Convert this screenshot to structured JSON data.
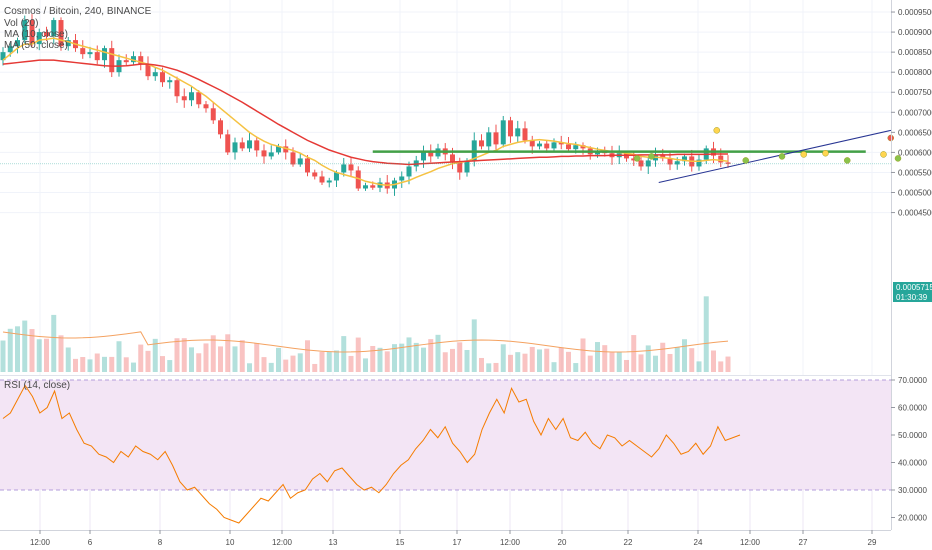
{
  "legend": {
    "title": "Cosmos / Bitcoin, 240, BINANCE",
    "vol": "Vol (20)",
    "ma10": "MA (10, close)",
    "ma50": "MA (50, close)",
    "rsi": "RSI (14, close)"
  },
  "price_badge": {
    "price": "0.0005715",
    "countdown": "01:30:39"
  },
  "colors": {
    "up": "#26a69a",
    "down": "#ef5350",
    "ma10": "#f5c242",
    "ma50": "#e53935",
    "rsi": "#f57c00",
    "support": "#43a047",
    "trend": "#283593",
    "rsi_band": "#f3e5f5"
  },
  "chart_data": [
    {
      "type": "candlestick",
      "title": "Cosmos / Bitcoin, 240, BINANCE",
      "x_ticks": [
        "12:00",
        "6",
        "8",
        "10",
        "12:00",
        "13",
        "15",
        "17",
        "12:00",
        "20",
        "22",
        "24",
        "12:00",
        "27",
        "29"
      ],
      "ylim": [
        4.5e-05,
        0.00098
      ],
      "y_ticks": [
        "0.0004500",
        "0.0005000",
        "0.0005500",
        "0.0006000",
        "0.0006500",
        "0.0007000",
        "0.0007500",
        "0.0008000",
        "0.0008500",
        "0.0009000",
        "0.0009500"
      ],
      "closes": [
        0.00085,
        0.000865,
        0.00088,
        0.00093,
        0.00087,
        0.0009,
        0.00089,
        0.00093,
        0.000865,
        0.00088,
        0.00086,
        0.000845,
        0.00085,
        0.00083,
        0.00086,
        0.0008,
        0.00083,
        0.000825,
        0.00084,
        0.00082,
        0.00079,
        0.0008,
        0.000775,
        0.00078,
        0.00074,
        0.00073,
        0.00075,
        0.00072,
        0.00071,
        0.00068,
        0.000645,
        0.0006,
        0.000625,
        0.00061,
        0.00063,
        0.000605,
        0.00059,
        0.0006,
        0.000615,
        0.0006,
        0.00057,
        0.000585,
        0.00055,
        0.00054,
        0.000525,
        0.00053,
        0.00055,
        0.00057,
        0.000555,
        0.00051,
        0.000518,
        0.000512,
        0.000525,
        0.00051,
        0.00053,
        0.00054,
        0.000565,
        0.00058,
        0.0006,
        0.00059,
        0.00061,
        0.000595,
        0.000575,
        0.00055,
        0.00058,
        0.00063,
        0.000615,
        0.00065,
        0.00062,
        0.00068,
        0.00064,
        0.00066,
        0.00063,
        0.000615,
        0.000622,
        0.00061,
        0.000625,
        0.00062,
        0.000608,
        0.000618,
        0.00061,
        0.000595,
        0.000602,
        0.000598,
        0.000588,
        0.000598,
        0.000585,
        0.00058,
        0.000565,
        0.00058,
        0.000595,
        0.000585,
        0.00057,
        0.000578,
        0.00059,
        0.000565,
        0.000582,
        0.00061,
        0.000592,
        0.000575,
        0.0005715
      ],
      "volume_max": 1,
      "series": [
        {
          "name": "MA (10, close)",
          "values": [
            0.00083,
            0.000845,
            0.00086,
            0.00087,
            0.00087,
            0.00088,
            0.000882,
            0.000885,
            0.00088,
            0.000876,
            0.00087,
            0.000865,
            0.00086,
            0.000855,
            0.00085,
            0.000845,
            0.00084,
            0.000835,
            0.00083,
            0.000825,
            0.00082,
            0.000812,
            0.000805,
            0.000795,
            0.000785,
            0.000775,
            0.000765,
            0.000752,
            0.00074,
            0.000725,
            0.00071,
            0.000695,
            0.00068,
            0.000665,
            0.00065,
            0.000638,
            0.000628,
            0.00062,
            0.000615,
            0.00061,
            0.000605,
            0.000598,
            0.000588,
            0.00058,
            0.000568,
            0.000558,
            0.00055,
            0.000545,
            0.00054,
            0.000535,
            0.000528,
            0.000524,
            0.00052,
            0.000518,
            0.00052,
            0.000525,
            0.00053,
            0.000538,
            0.000545,
            0.000552,
            0.00056,
            0.000566,
            0.000572,
            0.000575,
            0.000578,
            0.000585,
            0.000592,
            0.0006,
            0.000605,
            0.000615,
            0.00062,
            0.000625,
            0.000628,
            0.00063,
            0.000632,
            0.00063,
            0.000628,
            0.000625,
            0.000622,
            0.00062,
            0.000616,
            0.000612,
            0.000608,
            0.000605,
            0.000602,
            0.0006,
            0.000598,
            0.000595,
            0.00059,
            0.000588,
            0.000588,
            0.000587,
            0.000585,
            0.000582,
            0.00058,
            0.000578,
            0.000578,
            0.00058,
            0.000582,
            0.00058,
            0.000578
          ]
        },
        {
          "name": "MA (50, close)",
          "values": [
            0.00082,
            0.000822,
            0.000824,
            0.000826,
            0.000828,
            0.00083,
            0.00083,
            0.00083,
            0.000828,
            0.000826,
            0.000824,
            0.000822,
            0.00082,
            0.000818,
            0.000816,
            0.000815,
            0.000815,
            0.000816,
            0.000818,
            0.00082,
            0.00082,
            0.000818,
            0.000815,
            0.00081,
            0.000805,
            0.000798,
            0.00079,
            0.000782,
            0.000773,
            0.000764,
            0.000755,
            0.000745,
            0.000735,
            0.000725,
            0.000714,
            0.000703,
            0.000692,
            0.000681,
            0.00067,
            0.00066,
            0.00065,
            0.00064,
            0.00063,
            0.000622,
            0.000614,
            0.000606,
            0.0006,
            0.000594,
            0.000588,
            0.000584,
            0.00058,
            0.000577,
            0.000575,
            0.000573,
            0.000572,
            0.000571,
            0.00057,
            0.000571,
            0.000572,
            0.000573,
            0.000574,
            0.000575,
            0.000576,
            0.000577,
            0.000578,
            0.000579,
            0.00058,
            0.000581,
            0.000582,
            0.000583,
            0.000584,
            0.000585,
            0.000586,
            0.000587,
            0.000588,
            0.000588,
            0.000589,
            0.00059,
            0.00059,
            0.000591,
            0.000591,
            0.000592,
            0.000592,
            0.000592,
            0.000593,
            0.000593,
            0.000593,
            0.000593,
            0.000594,
            0.000594,
            0.000594,
            0.000594,
            0.000594,
            0.000595,
            0.000595,
            0.000595,
            0.000595,
            0.000595,
            0.000596,
            0.000596,
            0.000596
          ]
        }
      ],
      "annotations": {
        "support_level": 0.000602,
        "trend_from": [
          67,
          0.000525
        ],
        "trend_to": [
          100,
          0.000654
        ],
        "extends_to_index": 100
      }
    },
    {
      "type": "line",
      "title": "RSI (14, close)",
      "ylim": [
        15,
        70
      ],
      "y_ticks": [
        "20.0000",
        "30.0000",
        "40.0000",
        "50.0000",
        "60.0000",
        "70.0000"
      ],
      "band": [
        30,
        70
      ],
      "series": [
        {
          "name": "RSI (14, close)",
          "values": [
            56,
            58,
            63,
            68,
            64,
            58,
            60,
            66,
            56,
            58,
            52,
            47,
            46,
            43,
            42,
            40,
            44,
            42,
            46,
            44,
            43,
            41,
            44,
            39,
            33,
            30,
            31,
            28,
            25,
            23,
            20,
            19,
            18,
            21,
            24,
            27,
            26,
            29,
            32,
            27,
            29,
            30,
            34,
            36,
            33,
            37,
            38,
            35,
            32,
            30,
            31,
            29,
            32,
            36,
            39,
            41,
            45,
            48,
            52,
            49,
            53,
            47,
            44,
            40,
            43,
            52,
            58,
            63,
            58,
            67,
            62,
            63,
            55,
            50,
            56,
            52,
            56,
            49,
            48,
            51,
            47,
            45,
            50,
            49,
            46,
            48,
            46,
            44,
            42,
            45,
            50,
            47,
            43,
            44,
            47,
            43,
            46,
            53,
            48,
            49,
            50
          ]
        }
      ]
    }
  ]
}
